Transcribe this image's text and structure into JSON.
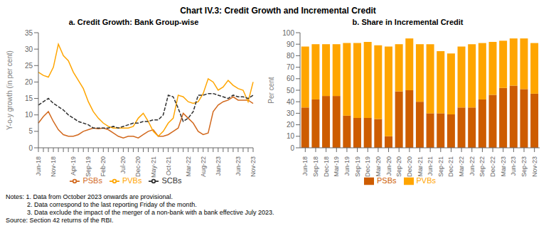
{
  "title": "Chart IV.3: Credit Growth and Incremental Credit",
  "annotations": [
    "Notes: 1. Data from October 2023 onwards are provisional.",
    "            2. Data correspond to the last reporting Friday of the month.",
    "            3. Data exclude the impact of the merger of a non-bank with a bank effective July 2023.",
    "Source: Section 42 returns of the RBI."
  ],
  "chart_data": [
    {
      "type": "line",
      "title": "a. Credit Growth: Bank Group-wise",
      "ylabel": "Y-o-y growth (in per cent)",
      "categories": [
        "Jun-18",
        null,
        null,
        "Nov-18",
        null,
        null,
        null,
        "Apr-19",
        null,
        null,
        "Sep-19",
        null,
        null,
        "Feb-20",
        null,
        null,
        null,
        "Jul-20",
        null,
        null,
        "Dec-20",
        null,
        null,
        "May-21",
        null,
        null,
        "Oct-21",
        null,
        null,
        null,
        "Mar-22",
        null,
        null,
        "Aug-22",
        null,
        null,
        "Jan-23",
        null,
        null,
        null,
        "Jun-23",
        null,
        null,
        "Nov-23"
      ],
      "ylim": [
        0,
        35
      ],
      "yticks": [
        0,
        5,
        10,
        15,
        20,
        25,
        30,
        35
      ],
      "legend": "bottom",
      "series": [
        {
          "name": "PSBs",
          "color": "#d2691e",
          "line_style": "solid",
          "values": [
            7.5,
            9.5,
            11.0,
            8.0,
            5.5,
            4.0,
            3.5,
            3.5,
            4.0,
            5.0,
            5.5,
            6.0,
            5.8,
            6.0,
            5.5,
            4.5,
            3.5,
            3.0,
            3.5,
            3.5,
            3.0,
            4.0,
            5.0,
            5.5,
            3.5,
            3.5,
            4.0,
            5.0,
            6.0,
            10.5,
            9.0,
            7.5,
            5.0,
            4.0,
            4.5,
            11.0,
            13.0,
            14.0,
            14.5,
            15.5,
            14.5,
            14.5,
            14.5,
            13.5
          ]
        },
        {
          "name": "PVBs",
          "color": "#ffa500",
          "line_style": "solid",
          "values": [
            23.0,
            22.0,
            21.5,
            24.5,
            31.5,
            28.0,
            26.5,
            23.0,
            20.5,
            18.0,
            14.0,
            11.0,
            9.0,
            7.5,
            6.5,
            6.0,
            6.0,
            6.0,
            6.0,
            6.5,
            9.0,
            10.5,
            8.0,
            5.0,
            3.5,
            5.0,
            7.5,
            9.0,
            16.0,
            15.5,
            14.0,
            13.5,
            14.0,
            16.5,
            21.0,
            20.0,
            17.5,
            18.5,
            20.5,
            19.0,
            18.0,
            17.5,
            14.0,
            20.0
          ]
        },
        {
          "name": "SCBs",
          "color": "#2f2f2f",
          "line_style": "dashed",
          "values": [
            13.0,
            14.0,
            15.0,
            13.5,
            12.5,
            11.5,
            10.0,
            9.0,
            8.0,
            7.5,
            7.0,
            6.0,
            6.0,
            6.0,
            6.0,
            6.5,
            6.0,
            6.5,
            7.0,
            7.5,
            7.5,
            8.0,
            8.0,
            8.5,
            8.5,
            10.0,
            16.0,
            15.5,
            12.0,
            8.0,
            9.0,
            11.0,
            16.0,
            16.0,
            16.5,
            16.5,
            16.0,
            15.5,
            15.0,
            16.0,
            15.5,
            15.5,
            15.0,
            16.0
          ]
        }
      ]
    },
    {
      "type": "bar",
      "title": "b. Share in Incremental Credit",
      "ylabel": "Per cent",
      "stacked": true,
      "categories": [
        "Jun-18",
        "Sep-18",
        "Dec-18",
        "Mar-19",
        "Jun-19",
        "Sep-19",
        "Dec-19",
        "Mar-20",
        "Jun-20",
        "Sep-20",
        "Dec-20",
        "Mar-21",
        "Jun-21",
        "Sep-21",
        "Dec-21",
        "Mar-22",
        "Jun-22",
        "Sep-22",
        "Dec-22",
        "Mar-23",
        "Jun-23",
        "Sep-23",
        "Nov-23"
      ],
      "ylim": [
        0,
        100
      ],
      "yticks": [
        0,
        10,
        20,
        30,
        40,
        50,
        60,
        70,
        80,
        90,
        100
      ],
      "legend": "bottom",
      "series": [
        {
          "name": "PSBs",
          "color": "#cd5c00",
          "values": [
            35,
            42,
            45,
            45,
            28,
            26,
            26,
            25,
            10,
            49,
            50,
            40,
            30,
            30,
            29,
            35,
            35,
            42,
            46,
            52,
            54,
            51,
            47
          ]
        },
        {
          "name": "PVBs",
          "color": "#ffa500",
          "values": [
            53,
            48,
            45,
            45,
            63,
            65,
            66,
            64,
            78,
            41,
            45,
            50,
            60,
            54,
            53,
            53,
            55,
            49,
            46,
            41,
            41,
            44,
            44
          ]
        }
      ]
    }
  ]
}
